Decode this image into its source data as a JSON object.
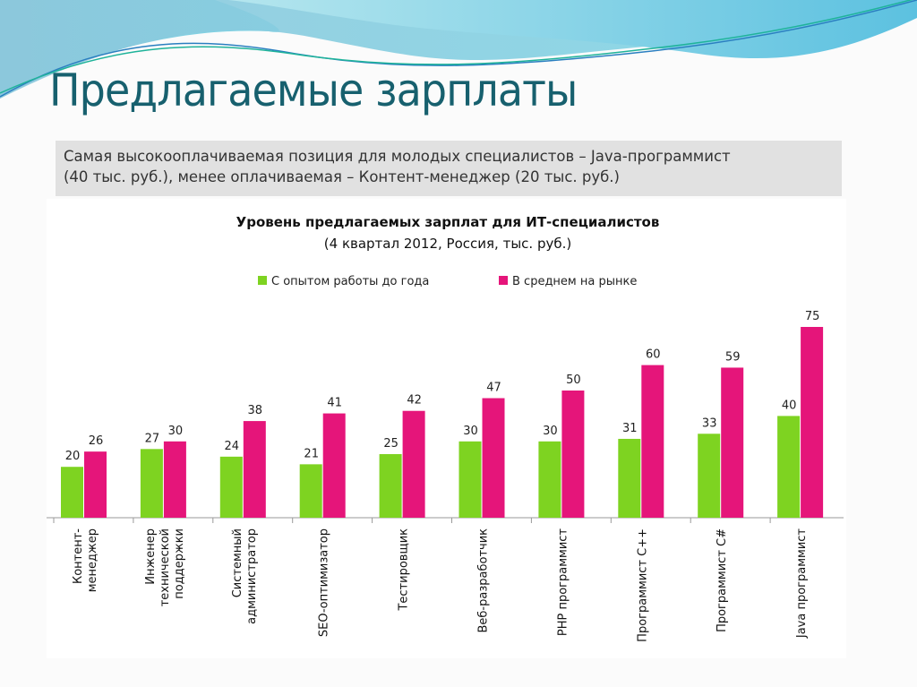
{
  "slide": {
    "title": "Предлагаемые зарплаты",
    "note_line1": "Самая высокооплачиваемая позиция для молодых специалистов – Java-программист",
    "note_line2": "(40 тыс. руб.), менее оплачиваемая – Контент-менеджер (20 тыс. руб.)"
  },
  "chart_data": {
    "type": "bar",
    "title": "Уровень предлагаемых зарплат для ИТ-специалистов",
    "subtitle": "(4 квартал 2012, Россия, тыс. руб.)",
    "legend_position": "top",
    "grid": false,
    "ylim": [
      0,
      75
    ],
    "categories": [
      [
        "Контент-",
        "менеджер"
      ],
      [
        "Инженер",
        "технической",
        "поддержки"
      ],
      [
        "Системный",
        "администратор"
      ],
      [
        "SEO-оптимизатор"
      ],
      [
        "Тестировщик"
      ],
      [
        "Веб-разработчик"
      ],
      [
        "PHP программист"
      ],
      [
        "Программист С++"
      ],
      [
        "Программист С#"
      ],
      [
        "Java программист"
      ]
    ],
    "series": [
      {
        "name": "С опытом работы до года",
        "color": "#7ed321",
        "values": [
          20,
          27,
          24,
          21,
          25,
          30,
          30,
          31,
          33,
          40
        ]
      },
      {
        "name": "В среднем на рынке",
        "color": "#e5157a",
        "values": [
          26,
          30,
          38,
          41,
          42,
          47,
          50,
          60,
          59,
          75
        ]
      }
    ]
  }
}
